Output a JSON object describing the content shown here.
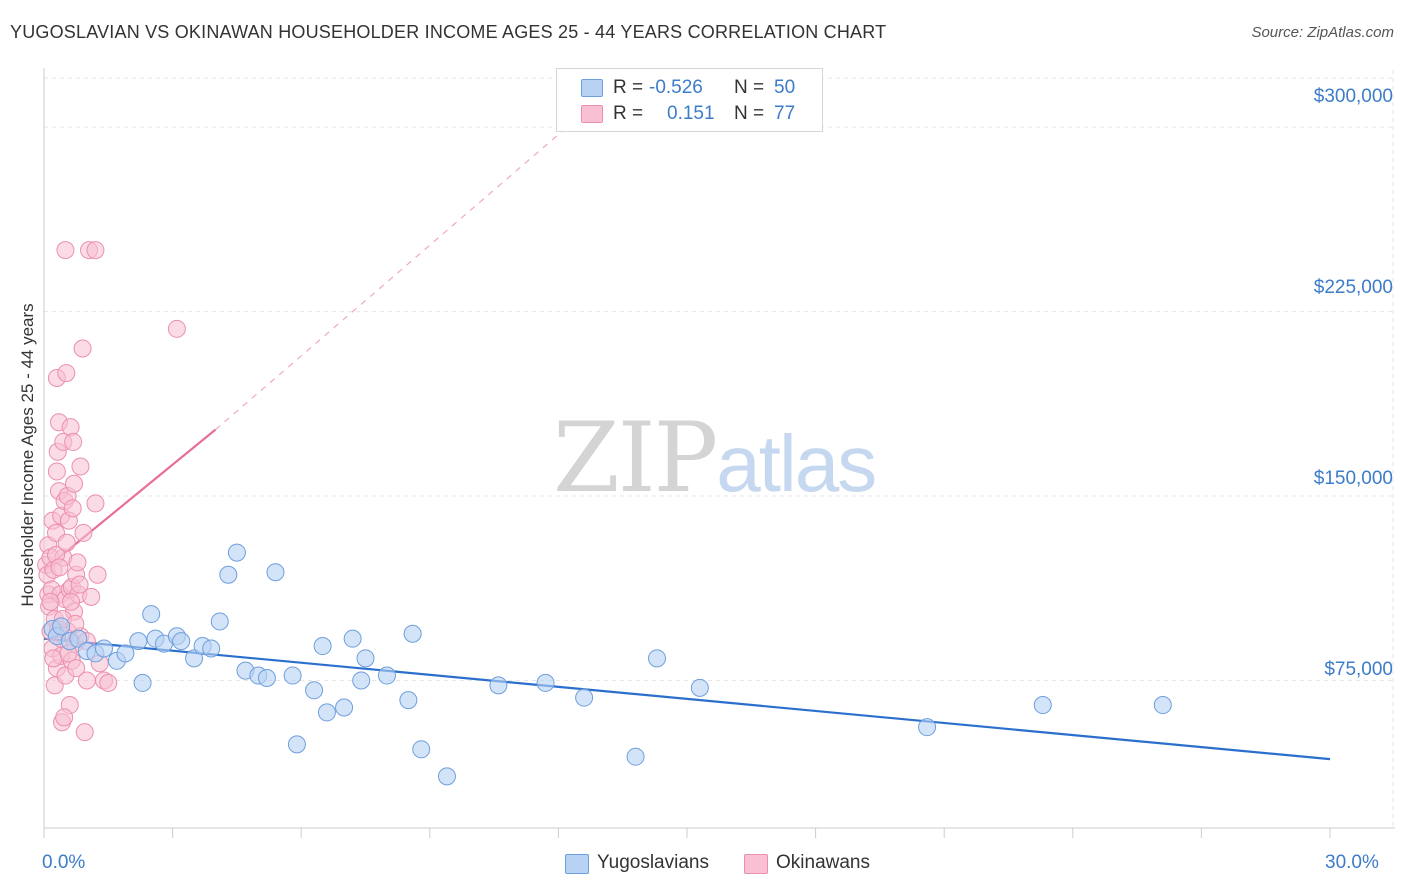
{
  "title": "YUGOSLAVIAN VS OKINAWAN HOUSEHOLDER INCOME AGES 25 - 44 YEARS CORRELATION CHART",
  "source": "Source: ZipAtlas.com",
  "watermark": {
    "zip": "ZIP",
    "atlas": "atlas"
  },
  "colors": {
    "blue_fill": "#b8d2f3",
    "blue_stroke": "#6e9fdc",
    "blue_line": "#2a6fcd",
    "pink_fill": "#f8c0d2",
    "pink_stroke": "#ec8fae",
    "pink_line": "#e86f96",
    "grid": "#e6e6e6",
    "tick_text": "#3d7cc9"
  },
  "legend": {
    "rows": [
      {
        "r_label": "R =",
        "r_value": "-0.526",
        "n_label": "N =",
        "n_value": "50"
      },
      {
        "r_label": "R =",
        "r_value": "0.151",
        "n_label": "N =",
        "n_value": "77"
      }
    ]
  },
  "chart_data": {
    "type": "scatter",
    "title": "YUGOSLAVIAN VS OKINAWAN HOUSEHOLDER INCOME AGES 25 - 44 YEARS CORRELATION CHART",
    "xlabel": "",
    "ylabel": "Householder Income Ages 25 - 44 years",
    "xlim": [
      0,
      30
    ],
    "ylim": [
      15000,
      320000
    ],
    "x_tick_labels": [
      "0.0%",
      "30.0%"
    ],
    "y_ticks": [
      75000,
      150000,
      225000,
      300000
    ],
    "y_tick_labels": [
      "$75,000",
      "$150,000",
      "$225,000",
      "$300,000"
    ],
    "legend_position": "bottom-center",
    "series": [
      {
        "name": "Yugoslavians",
        "r": -0.526,
        "n": 50,
        "trend": {
          "x": [
            0,
            30
          ],
          "y": [
            92000,
            43000
          ]
        },
        "points": [
          {
            "x": 0.2,
            "y": 96000
          },
          {
            "x": 0.3,
            "y": 93000
          },
          {
            "x": 0.4,
            "y": 97000
          },
          {
            "x": 0.6,
            "y": 91000
          },
          {
            "x": 0.8,
            "y": 92000
          },
          {
            "x": 1.0,
            "y": 87000
          },
          {
            "x": 1.2,
            "y": 86000
          },
          {
            "x": 1.4,
            "y": 88000
          },
          {
            "x": 1.7,
            "y": 83000
          },
          {
            "x": 1.9,
            "y": 86000
          },
          {
            "x": 2.2,
            "y": 91000
          },
          {
            "x": 2.3,
            "y": 74000
          },
          {
            "x": 2.5,
            "y": 102000
          },
          {
            "x": 2.6,
            "y": 92000
          },
          {
            "x": 2.8,
            "y": 90000
          },
          {
            "x": 3.1,
            "y": 93000
          },
          {
            "x": 3.2,
            "y": 91000
          },
          {
            "x": 3.5,
            "y": 84000
          },
          {
            "x": 3.7,
            "y": 89000
          },
          {
            "x": 3.9,
            "y": 88000
          },
          {
            "x": 4.1,
            "y": 99000
          },
          {
            "x": 4.3,
            "y": 118000
          },
          {
            "x": 4.5,
            "y": 127000
          },
          {
            "x": 4.7,
            "y": 79000
          },
          {
            "x": 5.0,
            "y": 77000
          },
          {
            "x": 5.2,
            "y": 76000
          },
          {
            "x": 5.4,
            "y": 119000
          },
          {
            "x": 5.8,
            "y": 77000
          },
          {
            "x": 5.9,
            "y": 49000
          },
          {
            "x": 6.3,
            "y": 71000
          },
          {
            "x": 6.5,
            "y": 89000
          },
          {
            "x": 6.6,
            "y": 62000
          },
          {
            "x": 7.0,
            "y": 64000
          },
          {
            "x": 7.2,
            "y": 92000
          },
          {
            "x": 7.4,
            "y": 75000
          },
          {
            "x": 7.5,
            "y": 84000
          },
          {
            "x": 8.0,
            "y": 77000
          },
          {
            "x": 8.5,
            "y": 67000
          },
          {
            "x": 8.6,
            "y": 94000
          },
          {
            "x": 8.8,
            "y": 47000
          },
          {
            "x": 9.4,
            "y": 36000
          },
          {
            "x": 10.6,
            "y": 73000
          },
          {
            "x": 11.7,
            "y": 74000
          },
          {
            "x": 12.6,
            "y": 68000
          },
          {
            "x": 13.8,
            "y": 44000
          },
          {
            "x": 14.3,
            "y": 84000
          },
          {
            "x": 15.3,
            "y": 72000
          },
          {
            "x": 20.6,
            "y": 56000
          },
          {
            "x": 23.3,
            "y": 65000
          },
          {
            "x": 26.1,
            "y": 65000
          }
        ]
      },
      {
        "name": "Okinawans",
        "r": 0.151,
        "n": 77,
        "trend": {
          "x": [
            0,
            4
          ],
          "y": [
            120000,
            177000
          ]
        },
        "trend_extension": {
          "x": [
            4,
            12.2
          ],
          "y": [
            177000,
            300000
          ]
        },
        "points": [
          {
            "x": 0.05,
            "y": 122000
          },
          {
            "x": 0.08,
            "y": 118000
          },
          {
            "x": 0.1,
            "y": 130000
          },
          {
            "x": 0.1,
            "y": 110000
          },
          {
            "x": 0.12,
            "y": 105000
          },
          {
            "x": 0.15,
            "y": 95000
          },
          {
            "x": 0.15,
            "y": 125000
          },
          {
            "x": 0.18,
            "y": 112000
          },
          {
            "x": 0.2,
            "y": 88000
          },
          {
            "x": 0.2,
            "y": 140000
          },
          {
            "x": 0.22,
            "y": 120000
          },
          {
            "x": 0.25,
            "y": 100000
          },
          {
            "x": 0.25,
            "y": 73000
          },
          {
            "x": 0.28,
            "y": 135000
          },
          {
            "x": 0.3,
            "y": 160000
          },
          {
            "x": 0.3,
            "y": 198000
          },
          {
            "x": 0.3,
            "y": 80000
          },
          {
            "x": 0.32,
            "y": 168000
          },
          {
            "x": 0.35,
            "y": 180000
          },
          {
            "x": 0.35,
            "y": 152000
          },
          {
            "x": 0.38,
            "y": 110000
          },
          {
            "x": 0.4,
            "y": 142000
          },
          {
            "x": 0.4,
            "y": 92000
          },
          {
            "x": 0.4,
            "y": 85000
          },
          {
            "x": 0.42,
            "y": 58000
          },
          {
            "x": 0.45,
            "y": 125000
          },
          {
            "x": 0.45,
            "y": 172000
          },
          {
            "x": 0.48,
            "y": 148000
          },
          {
            "x": 0.5,
            "y": 108000
          },
          {
            "x": 0.5,
            "y": 77000
          },
          {
            "x": 0.5,
            "y": 250000
          },
          {
            "x": 0.52,
            "y": 200000
          },
          {
            "x": 0.55,
            "y": 150000
          },
          {
            "x": 0.55,
            "y": 95000
          },
          {
            "x": 0.58,
            "y": 140000
          },
          {
            "x": 0.6,
            "y": 65000
          },
          {
            "x": 0.6,
            "y": 112000
          },
          {
            "x": 0.62,
            "y": 178000
          },
          {
            "x": 0.65,
            "y": 83000
          },
          {
            "x": 0.65,
            "y": 113000
          },
          {
            "x": 0.68,
            "y": 172000
          },
          {
            "x": 0.7,
            "y": 155000
          },
          {
            "x": 0.7,
            "y": 103000
          },
          {
            "x": 0.72,
            "y": 90000
          },
          {
            "x": 0.75,
            "y": 118000
          },
          {
            "x": 0.75,
            "y": 80000
          },
          {
            "x": 0.8,
            "y": 110000
          },
          {
            "x": 0.85,
            "y": 162000
          },
          {
            "x": 0.85,
            "y": 93000
          },
          {
            "x": 0.9,
            "y": 210000
          },
          {
            "x": 0.95,
            "y": 54000
          },
          {
            "x": 1.0,
            "y": 75000
          },
          {
            "x": 1.0,
            "y": 91000
          },
          {
            "x": 1.05,
            "y": 250000
          },
          {
            "x": 1.1,
            "y": 109000
          },
          {
            "x": 1.2,
            "y": 147000
          },
          {
            "x": 1.2,
            "y": 250000
          },
          {
            "x": 1.25,
            "y": 118000
          },
          {
            "x": 1.3,
            "y": 82000
          },
          {
            "x": 1.4,
            "y": 75000
          },
          {
            "x": 1.5,
            "y": 74000
          },
          {
            "x": 3.1,
            "y": 218000
          },
          {
            "x": 0.15,
            "y": 107000
          },
          {
            "x": 0.22,
            "y": 84000
          },
          {
            "x": 0.28,
            "y": 126000
          },
          {
            "x": 0.33,
            "y": 96000
          },
          {
            "x": 0.36,
            "y": 121000
          },
          {
            "x": 0.44,
            "y": 100000
          },
          {
            "x": 0.47,
            "y": 60000
          },
          {
            "x": 0.53,
            "y": 131000
          },
          {
            "x": 0.57,
            "y": 86000
          },
          {
            "x": 0.63,
            "y": 107000
          },
          {
            "x": 0.67,
            "y": 145000
          },
          {
            "x": 0.73,
            "y": 98000
          },
          {
            "x": 0.78,
            "y": 123000
          },
          {
            "x": 0.83,
            "y": 114000
          },
          {
            "x": 0.92,
            "y": 135000
          }
        ]
      }
    ]
  },
  "bottom_legend": [
    {
      "label": "Yugoslavians"
    },
    {
      "label": "Okinawans"
    }
  ]
}
